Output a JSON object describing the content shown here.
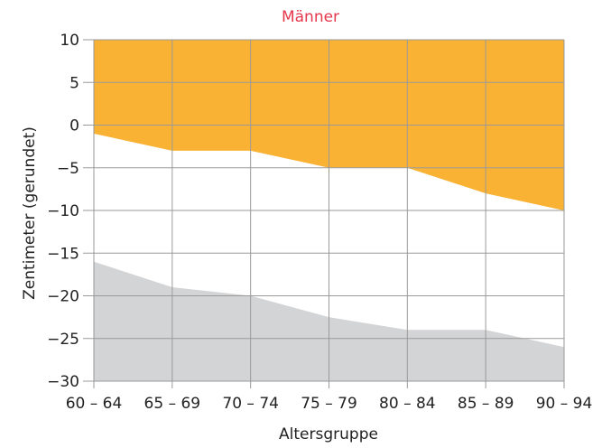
{
  "chart_data": {
    "type": "area",
    "title": "Männer",
    "xlabel": "Altersgruppe",
    "ylabel": "Zentimeter (gerundet)",
    "categories": [
      "60 – 64",
      "65 – 69",
      "70 – 74",
      "75 – 79",
      "80 – 84",
      "85 – 89",
      "90 – 94"
    ],
    "ylim": [
      -30,
      10
    ],
    "yticks": [
      10,
      5,
      0,
      -5,
      -10,
      -15,
      -20,
      -25,
      -30
    ],
    "ytick_labels": [
      "10",
      "5",
      "0",
      "−5",
      "−10",
      "−15",
      "−20",
      "−25",
      "−30"
    ],
    "grid": true,
    "series": [
      {
        "values": [
          -1,
          -3,
          -3,
          -5,
          -5,
          -8,
          -10
        ],
        "fill": "top",
        "color": "#f9b233"
      },
      {
        "values": [
          -16,
          -19,
          -20,
          -22.5,
          -24,
          -24,
          -26
        ],
        "fill": "bottom",
        "color": "#d3d4d6"
      }
    ]
  },
  "colors": {
    "title": "#e5384d",
    "grid": "#9a9a9a",
    "text": "#222222"
  }
}
